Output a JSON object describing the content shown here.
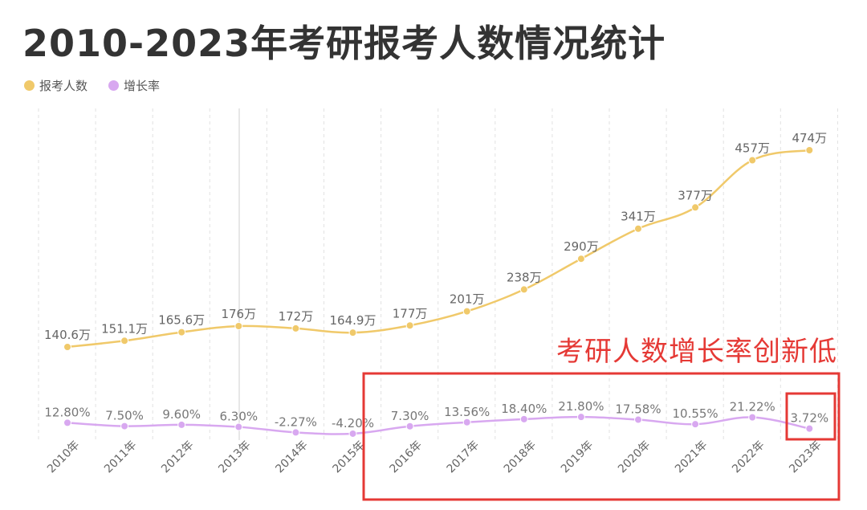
{
  "title": "2010-2023年考研报考人数情况统计",
  "legend": [
    {
      "label": "报考人数",
      "color": "#f0c96a"
    },
    {
      "label": "增长率",
      "color": "#d8a8f0"
    }
  ],
  "annotation": "考研人数增长率创新低",
  "chart_data": {
    "type": "line",
    "title": "2010-2023年考研报考人数情况统计",
    "categories": [
      "2010年",
      "2011年",
      "2012年",
      "2013年",
      "2014年",
      "2015年",
      "2016年",
      "2017年",
      "2018年",
      "2019年",
      "2020年",
      "2021年",
      "2022年",
      "2023年"
    ],
    "grid": "vertical dashed",
    "legend_position": "top-left",
    "series": [
      {
        "name": "报考人数",
        "unit": "万",
        "color": "#f0c96a",
        "values": [
          140.6,
          151.1,
          165.6,
          176,
          172,
          164.9,
          177,
          201,
          238,
          290,
          341,
          377,
          457,
          474
        ],
        "labels": [
          "140.6万",
          "151.1万",
          "165.6万",
          "176万",
          "172万",
          "164.9万",
          "177万",
          "201万",
          "238万",
          "290万",
          "341万",
          "377万",
          "457万",
          "474万"
        ]
      },
      {
        "name": "增长率",
        "unit": "%",
        "color": "#d8a8f0",
        "values": [
          12.8,
          7.5,
          9.6,
          6.3,
          -2.27,
          -4.2,
          7.3,
          13.56,
          18.4,
          21.8,
          17.58,
          10.55,
          21.22,
          3.72
        ],
        "labels": [
          "12.80%",
          "7.50%",
          "9.60%",
          "6.30%",
          "-2.27%",
          "-4.20%",
          "7.30%",
          "13.56%",
          "18.40%",
          "21.80%",
          "17.58%",
          "10.55%",
          "21.22%",
          "3.72%"
        ]
      }
    ]
  }
}
